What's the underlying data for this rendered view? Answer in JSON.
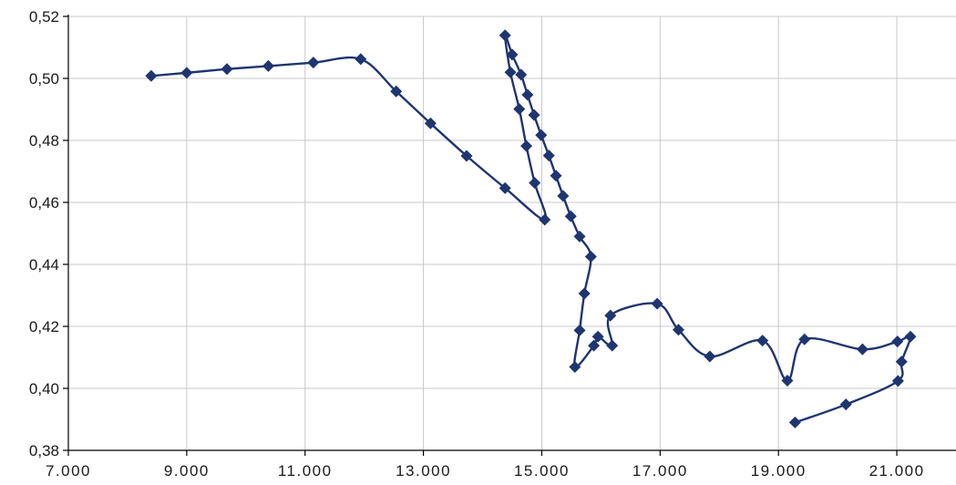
{
  "chart_data": {
    "type": "scatter",
    "title": "",
    "xlabel": "",
    "ylabel": "",
    "xlim": [
      7000,
      22000
    ],
    "ylim": [
      0.38,
      0.52
    ],
    "x_ticks": [
      7000,
      9000,
      11000,
      13000,
      15000,
      17000,
      19000,
      21000
    ],
    "x_tick_labels": [
      "7.000",
      "9.000",
      "11.000",
      "13.000",
      "15.000",
      "17.000",
      "19.000",
      "21.000"
    ],
    "y_ticks": [
      0.38,
      0.4,
      0.42,
      0.44,
      0.46,
      0.48,
      0.5,
      0.52
    ],
    "y_tick_labels": [
      "0,38",
      "0,40",
      "0,42",
      "0,44",
      "0,46",
      "0,48",
      "0,50",
      "0,52"
    ],
    "grid": true,
    "legend": "none",
    "color": "#1f3570",
    "marker": "diamond",
    "line": "smooth",
    "series": [
      {
        "x": [
          8400,
          9000,
          9680,
          10380,
          11140,
          11940,
          12540,
          13120,
          13730,
          14380,
          15050,
          14880,
          14740,
          14620,
          14470,
          14380,
          14500,
          14650,
          14760,
          14870,
          14990,
          15120,
          15240,
          15360,
          15490,
          15640,
          15830,
          15720,
          15640,
          15560,
          15880,
          15950,
          16190,
          16160,
          16950,
          17310,
          17840,
          18730,
          19150,
          19440,
          20420,
          21010,
          21230,
          21080,
          21020,
          20140,
          19280
        ],
        "y": [
          0.5008,
          0.5018,
          0.503,
          0.504,
          0.5051,
          0.5062,
          0.4958,
          0.4855,
          0.475,
          0.4646,
          0.4544,
          0.4663,
          0.4782,
          0.4901,
          0.502,
          0.5139,
          0.5077,
          0.5012,
          0.4947,
          0.4882,
          0.4817,
          0.4751,
          0.4686,
          0.4621,
          0.4555,
          0.449,
          0.4425,
          0.4306,
          0.4187,
          0.4069,
          0.4138,
          0.4167,
          0.4138,
          0.4235,
          0.4273,
          0.4189,
          0.4103,
          0.4154,
          0.4025,
          0.4158,
          0.4126,
          0.4151,
          0.4167,
          0.4086,
          0.4024,
          0.3948,
          0.389
        ]
      }
    ]
  }
}
